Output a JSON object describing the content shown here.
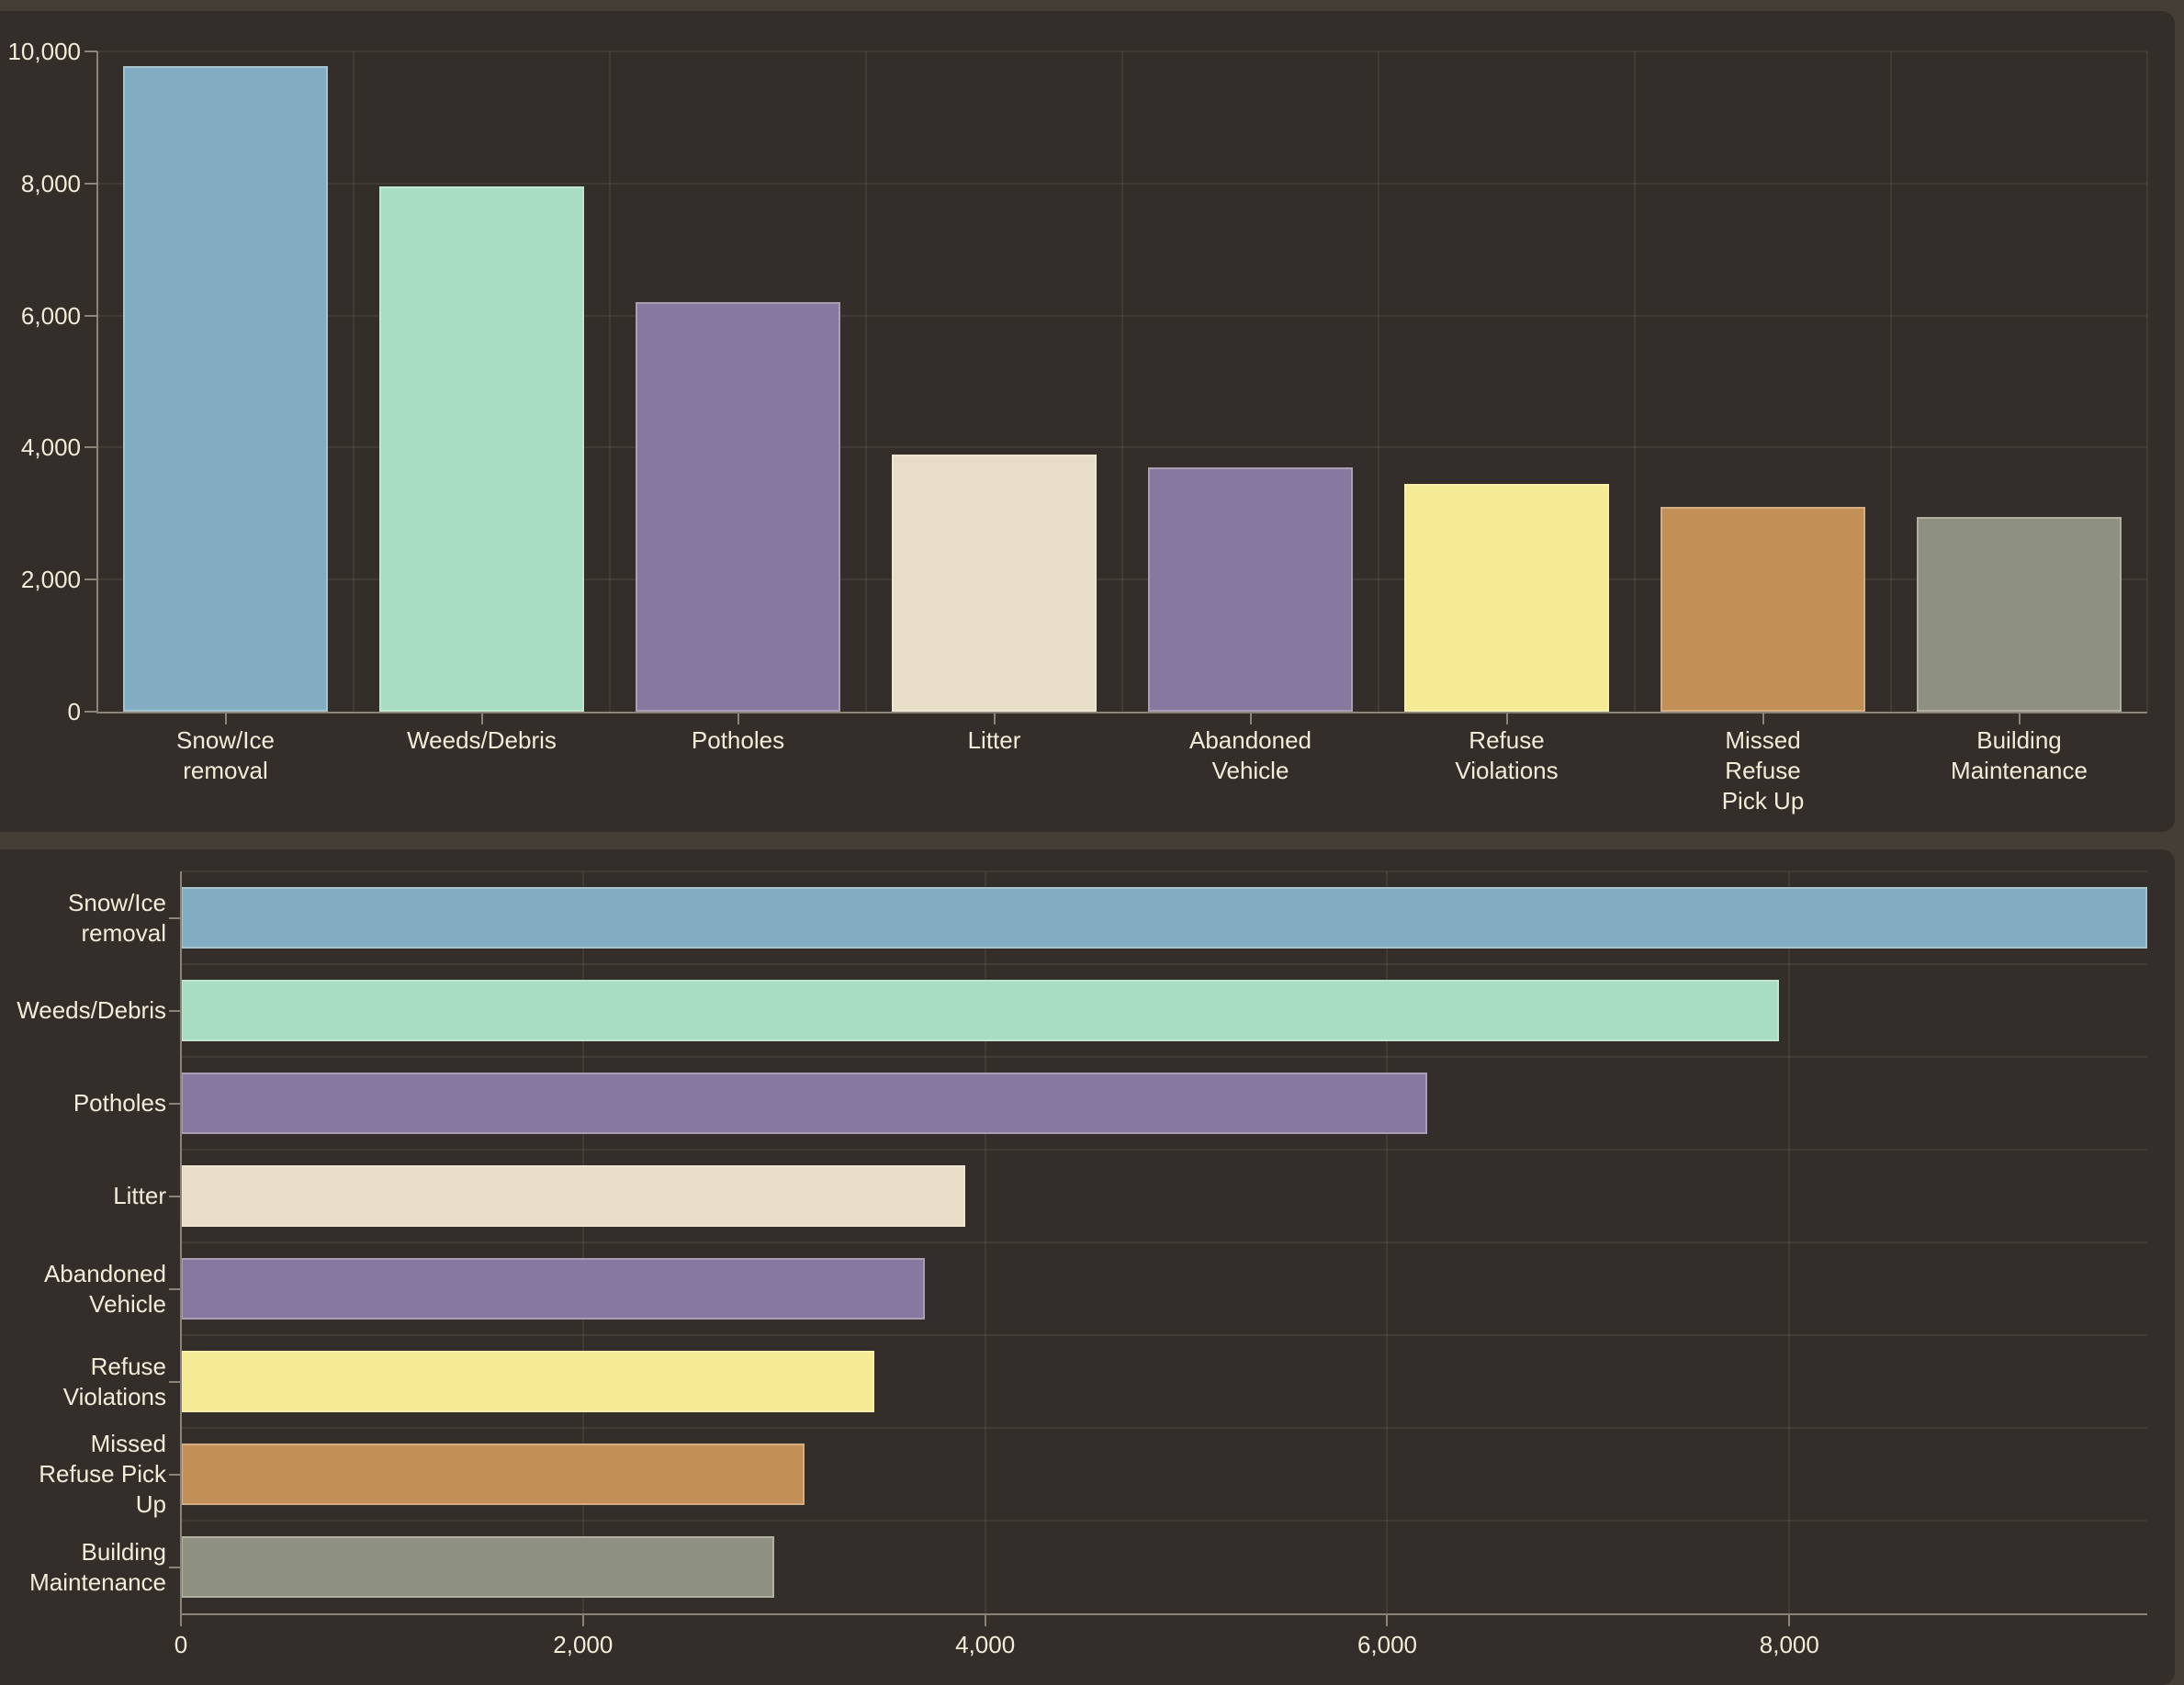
{
  "page": {
    "background": "#453e37",
    "panel_background": "#332e29",
    "text_color": "#f3ecd9",
    "axis_color": "#8a8377",
    "grid_color": "rgba(243,236,217,0.07)"
  },
  "chart_data": [
    {
      "type": "bar",
      "orientation": "vertical",
      "title": "",
      "xlabel": "",
      "ylabel": "",
      "grid": true,
      "legend": false,
      "categories": [
        "Snow/Ice removal",
        "Weeds/Debris",
        "Potholes",
        "Litter",
        "Abandoned Vehicle",
        "Refuse Violations",
        "Missed Refuse Pick Up",
        "Building Maintenance"
      ],
      "category_label_lines": [
        [
          "Snow/Ice",
          "removal"
        ],
        [
          "Weeds/Debris"
        ],
        [
          "Potholes"
        ],
        [
          "Litter"
        ],
        [
          "Abandoned",
          "Vehicle"
        ],
        [
          "Refuse",
          "Violations"
        ],
        [
          "Missed",
          "Refuse",
          "Pick Up"
        ],
        [
          "Building",
          "Maintenance"
        ]
      ],
      "values": [
        9780,
        7950,
        6200,
        3900,
        3700,
        3450,
        3100,
        2950
      ],
      "colors": [
        "#82acc2",
        "#a8ddc4",
        "#86789f",
        "#e8ddc6",
        "#86789f",
        "#f5eb94",
        "#c28f57",
        "#8e9081"
      ],
      "ylim": [
        0,
        10000
      ],
      "yticks": [
        0,
        2000,
        4000,
        6000,
        8000,
        10000
      ],
      "ytick_labels": [
        "0",
        "2,000",
        "4,000",
        "6,000",
        "8,000",
        "10,000"
      ]
    },
    {
      "type": "bar",
      "orientation": "horizontal",
      "title": "",
      "xlabel": "",
      "ylabel": "",
      "grid": true,
      "legend": false,
      "categories": [
        "Snow/Ice removal",
        "Weeds/Debris",
        "Potholes",
        "Litter",
        "Abandoned Vehicle",
        "Refuse Violations",
        "Missed Refuse Pick Up",
        "Building Maintenance"
      ],
      "category_label_lines": [
        [
          "Snow/Ice",
          "removal"
        ],
        [
          "Weeds/Debris"
        ],
        [
          "Potholes"
        ],
        [
          "Litter"
        ],
        [
          "Abandoned",
          "Vehicle"
        ],
        [
          "Refuse",
          "Violations"
        ],
        [
          "Missed",
          "Refuse Pick",
          "Up"
        ],
        [
          "Building",
          "Maintenance"
        ]
      ],
      "values": [
        9780,
        7950,
        6200,
        3900,
        3700,
        3450,
        3100,
        2950
      ],
      "colors": [
        "#82acc2",
        "#a8ddc4",
        "#86789f",
        "#e8ddc6",
        "#86789f",
        "#f5eb94",
        "#c28f57",
        "#8e9081"
      ],
      "xlim": [
        0,
        9780
      ],
      "xticks": [
        0,
        2000,
        4000,
        6000,
        8000
      ],
      "xtick_labels": [
        "0",
        "2,000",
        "4,000",
        "6,000",
        "8,000"
      ]
    }
  ]
}
